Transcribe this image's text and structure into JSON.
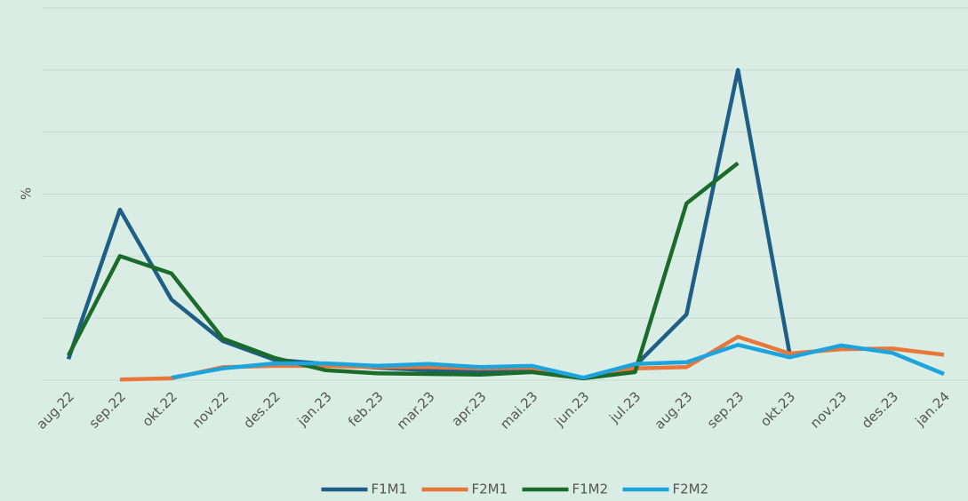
{
  "chart_data": {
    "type": "line",
    "y_label": "%",
    "categories": [
      "aug.22",
      "sep.22",
      "okt.22",
      "nov.22",
      "des.22",
      "jan.23",
      "feb.23",
      "mar.23",
      "apr.23",
      "mai.23",
      "jun.23",
      "jul.23",
      "aug.23",
      "sep.23",
      "okt.23",
      "nov.23",
      "des.23",
      "jan.24"
    ],
    "series": [
      {
        "name": "F1M1",
        "color": "#1f5f86",
        "values": [
          0.34,
          2.75,
          1.3,
          0.63,
          0.33,
          0.26,
          0.2,
          0.16,
          0.14,
          0.16,
          0.03,
          0.23,
          1.06,
          5.0,
          0.44,
          null,
          null,
          null
        ]
      },
      {
        "name": "F2M1",
        "color": "#e8773a",
        "values": [
          null,
          0.01,
          0.03,
          0.21,
          0.23,
          0.23,
          0.21,
          0.21,
          0.19,
          0.2,
          0.03,
          0.19,
          0.21,
          0.7,
          0.43,
          0.5,
          0.51,
          0.41
        ]
      },
      {
        "name": "F1M2",
        "color": "#1b6b2a",
        "values": [
          0.4,
          2.0,
          1.72,
          0.67,
          0.36,
          0.16,
          0.11,
          0.1,
          0.09,
          0.13,
          0.03,
          0.13,
          2.85,
          3.5,
          null,
          null,
          null,
          null
        ]
      },
      {
        "name": "F2M2",
        "color": "#1ea4dc",
        "values": [
          null,
          null,
          0.04,
          0.19,
          0.27,
          0.27,
          0.23,
          0.26,
          0.21,
          0.23,
          0.04,
          0.26,
          0.29,
          0.57,
          0.37,
          0.56,
          0.44,
          0.1
        ]
      }
    ],
    "ylim": [
      0,
      6
    ],
    "yticks": [
      0,
      1,
      2,
      3,
      4,
      5,
      6
    ],
    "grid": true,
    "legend": "bottom"
  }
}
